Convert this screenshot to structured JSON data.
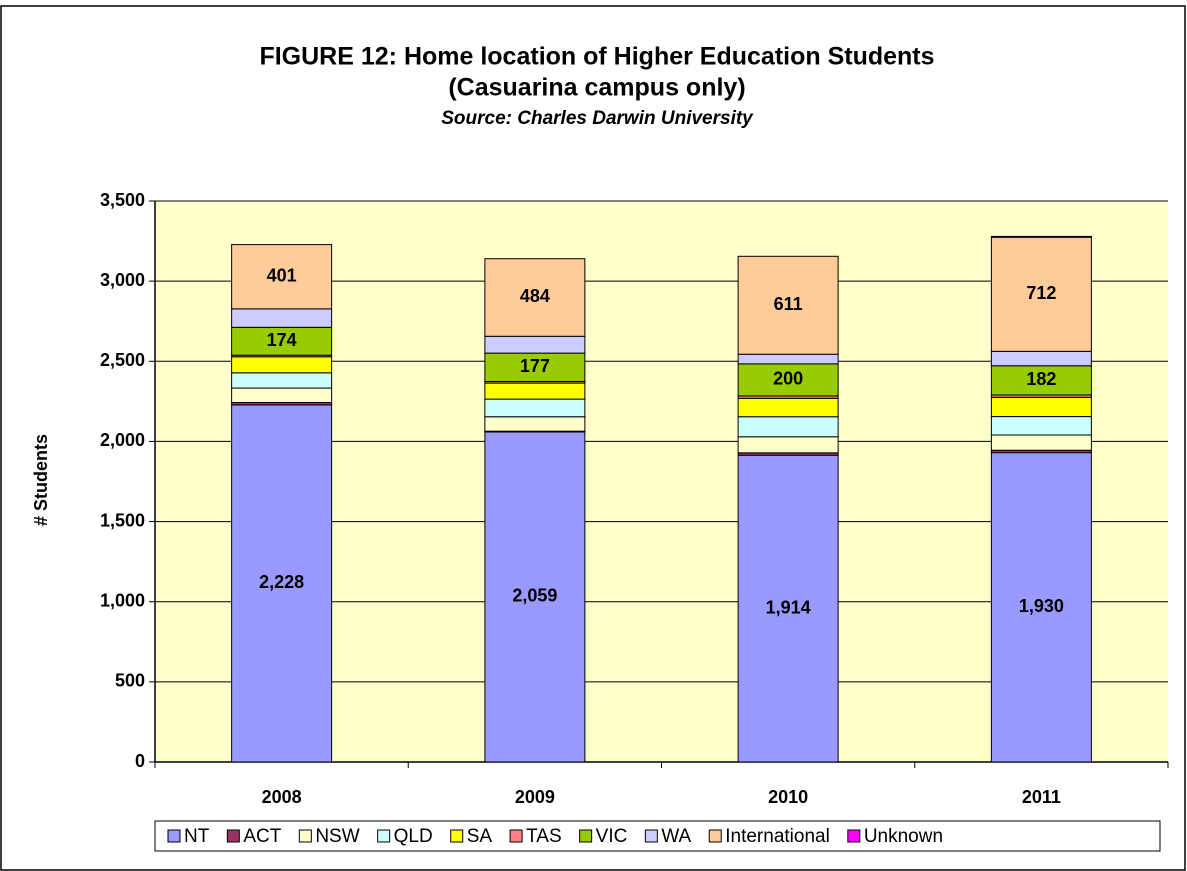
{
  "chart_data": {
    "type": "stacked_bar",
    "title": "FIGURE 12: Home location of Higher Education Students",
    "title_line2": "(Casuarina campus only)",
    "subtitle": "Source: Charles Darwin University",
    "y_label": "# Students",
    "categories": [
      "2008",
      "2009",
      "2010",
      "2011"
    ],
    "ylim": [
      0,
      3500
    ],
    "yticks": [
      0,
      500,
      {
        "value": 1000,
        "label": "1,000"
      },
      {
        "value": 1500,
        "label": "1,500"
      },
      {
        "value": 2000,
        "label": "2,000"
      },
      {
        "value": 2500,
        "label": "2,500"
      },
      {
        "value": 3000,
        "label": "3,000"
      },
      {
        "value": 3500,
        "label": "3,500"
      }
    ],
    "grid": true,
    "legend": "bottom",
    "series": [
      {
        "name": "NT",
        "color": "#9999ff",
        "values": [
          2228,
          2059,
          1914,
          1930
        ],
        "value_labels": [
          "2,228",
          "2,059",
          "1,914",
          "1,930"
        ]
      },
      {
        "name": "ACT",
        "color": "#993366",
        "values": [
          15,
          5,
          15,
          15
        ]
      },
      {
        "name": "NSW",
        "color": "#ffffcc",
        "values": [
          90,
          90,
          100,
          95
        ]
      },
      {
        "name": "QLD",
        "color": "#ccffff",
        "values": [
          95,
          110,
          125,
          115
        ]
      },
      {
        "name": "SA",
        "color": "#ffff00",
        "values": [
          100,
          100,
          115,
          120
        ]
      },
      {
        "name": "TAS",
        "color": "#ff8080",
        "values": [
          10,
          10,
          15,
          15
        ]
      },
      {
        "name": "VIC",
        "color": "#99cc00",
        "values": [
          174,
          177,
          200,
          182
        ],
        "show_labels": true
      },
      {
        "name": "WA",
        "color": "#ccccff",
        "values": [
          115,
          105,
          60,
          90
        ]
      },
      {
        "name": "International",
        "color": "#ffcc99",
        "values": [
          401,
          484,
          611,
          712
        ],
        "show_labels": true
      },
      {
        "name": "Unknown",
        "color": "#ff00ff",
        "values": [
          0,
          0,
          0,
          5
        ]
      }
    ]
  }
}
